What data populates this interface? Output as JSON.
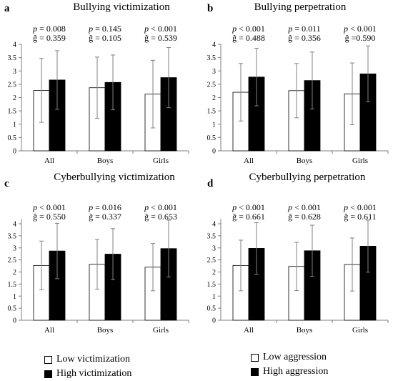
{
  "colors": {
    "low": "#ffffff",
    "high": "#000000",
    "axis": "#7f7f7f",
    "error": "#808080"
  },
  "chart_data": [
    {
      "type": "bar",
      "panel": "a",
      "title": "Bullying victimization",
      "categories": [
        "All",
        "Boys",
        "Girls"
      ],
      "ylim": [
        0,
        4
      ],
      "yticks": [
        "0",
        "0.5",
        "1",
        "1.5",
        "2",
        "2.5",
        "3",
        "3.5",
        "4"
      ],
      "series": [
        {
          "values": [
            2.27,
            2.37,
            2.13
          ],
          "errors": [
            1.2,
            1.15,
            1.27
          ]
        },
        {
          "values": [
            2.66,
            2.57,
            2.75
          ],
          "errors": [
            1.1,
            1.03,
            1.13
          ]
        }
      ],
      "annotations": [
        {
          "p": "p = 0.008",
          "g": "ĝ = 0.359"
        },
        {
          "p": "p = 0.145",
          "g": "ĝ = 0.105"
        },
        {
          "p": "p < 0.001",
          "g": "ĝ = 0.539"
        }
      ]
    },
    {
      "type": "bar",
      "panel": "b",
      "title": "Bullying perpetration",
      "categories": [
        "All",
        "Boys",
        "Girls"
      ],
      "ylim": [
        0,
        4
      ],
      "yticks": [
        "0",
        "0.5",
        "1",
        "1.5",
        "2",
        "2.5",
        "3",
        "3.5",
        "4"
      ],
      "series": [
        {
          "values": [
            2.2,
            2.26,
            2.14
          ],
          "errors": [
            1.08,
            1.02,
            1.16
          ]
        },
        {
          "values": [
            2.77,
            2.64,
            2.89
          ],
          "errors": [
            1.08,
            1.07,
            1.05
          ]
        }
      ],
      "annotations": [
        {
          "p": "p < 0.001",
          "g": "ĝ = 0.488"
        },
        {
          "p": "p = 0.011",
          "g": "ĝ = 0.356"
        },
        {
          "p": "p < 0.001",
          "g": "ĝ =0.590"
        }
      ]
    },
    {
      "type": "bar",
      "panel": "c",
      "title": "Cyberbullying victimization",
      "categories": [
        "All",
        "Boys",
        "Girls"
      ],
      "ylim": [
        0,
        4.2
      ],
      "yticks": [
        "0",
        "0.5",
        "1",
        "1.5",
        "2",
        "2.5",
        "3",
        "3.5",
        "4"
      ],
      "series": [
        {
          "values": [
            2.27,
            2.32,
            2.2
          ],
          "errors": [
            1.01,
            1.03,
            0.98
          ]
        },
        {
          "values": [
            2.87,
            2.74,
            2.97
          ],
          "errors": [
            1.15,
            1.06,
            1.18
          ]
        }
      ],
      "annotations": [
        {
          "p": "p < 0.001",
          "g": "ĝ = 0.550"
        },
        {
          "p": "p = 0.016",
          "g": "ĝ = 0.337"
        },
        {
          "p": "p < 0.001",
          "g": "ĝ = 0.653"
        }
      ]
    },
    {
      "type": "bar",
      "panel": "d",
      "title": "Cyberbullying perpetration",
      "categories": [
        "All",
        "Boys",
        "Girls"
      ],
      "ylim": [
        0,
        4.2
      ],
      "yticks": [
        "0",
        "0.5",
        "1",
        "1.5",
        "2",
        "2.5",
        "3",
        "3.5",
        "4"
      ],
      "series": [
        {
          "values": [
            2.27,
            2.23,
            2.31
          ],
          "errors": [
            1.05,
            1.0,
            1.1
          ]
        },
        {
          "values": [
            2.98,
            2.88,
            3.07
          ],
          "errors": [
            1.07,
            1.06,
            1.08
          ]
        }
      ],
      "annotations": [
        {
          "p": "p < 0.001",
          "g": "ĝ = 0.661"
        },
        {
          "p": "p < 0.001",
          "g": "ĝ = 0.628"
        },
        {
          "p": "p < 0.001",
          "g": "ĝ = 0.611"
        }
      ]
    }
  ],
  "legends": [
    {
      "low": "Low victimization",
      "high": "High victimization"
    },
    {
      "low": "Low aggression",
      "high": "High aggression"
    }
  ]
}
